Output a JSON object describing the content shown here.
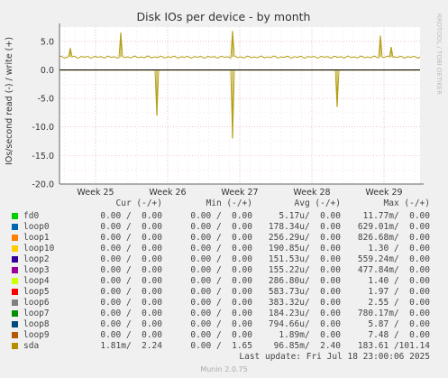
{
  "chart_data": {
    "type": "line",
    "title": "Disk IOs per device - by month",
    "ylabel": "IOs/second read (-) / write (+)",
    "watermark": "RRDTOOL / TOBI OETIKER",
    "ylim": [
      -20,
      7.5
    ],
    "yticks": [
      5.0,
      0.0,
      -5.0,
      -10.0,
      -15.0,
      -20.0
    ],
    "ytick_labels": [
      "5.0",
      "0.0",
      "-5.0",
      "-10.0",
      "-15.0",
      "-20.0"
    ],
    "xlabels": [
      "Week 25",
      "Week 26",
      "Week 27",
      "Week 28",
      "Week 29"
    ],
    "grid": true,
    "series": [
      {
        "name": "sda",
        "color": "#b5a016",
        "write_baseline": 2.24,
        "write_spikes": [
          {
            "x": 0.03,
            "value": 3.8
          },
          {
            "x": 0.17,
            "value": 6.5
          },
          {
            "x": 0.48,
            "value": 6.8
          },
          {
            "x": 0.89,
            "value": 6.0
          },
          {
            "x": 0.92,
            "value": 4.0
          }
        ],
        "read_spikes": [
          {
            "x": 0.27,
            "value": -8.0
          },
          {
            "x": 0.48,
            "value": -12.0
          },
          {
            "x": 0.77,
            "value": -6.5
          }
        ]
      }
    ]
  },
  "legend": {
    "headers": {
      "cur": "Cur (-/+)",
      "min": "Min (-/+)",
      "avg": "Avg (-/+)",
      "max": "Max (-/+)"
    },
    "rows": [
      {
        "name": "fd0",
        "color": "#00cc00",
        "cur": "0.00 /  0.00",
        "min": "0.00 /  0.00",
        "avg": "5.17u/  0.00",
        "max": "11.77m/  0.00"
      },
      {
        "name": "loop0",
        "color": "#0066b3",
        "cur": "0.00 /  0.00",
        "min": "0.00 /  0.00",
        "avg": "178.34u/  0.00",
        "max": "629.01m/  0.00"
      },
      {
        "name": "loop1",
        "color": "#ff8000",
        "cur": "0.00 /  0.00",
        "min": "0.00 /  0.00",
        "avg": "256.29u/  0.00",
        "max": "826.68m/  0.00"
      },
      {
        "name": "loop10",
        "color": "#ffcc00",
        "cur": "0.00 /  0.00",
        "min": "0.00 /  0.00",
        "avg": "190.85u/  0.00",
        "max": "1.30 /  0.00"
      },
      {
        "name": "loop2",
        "color": "#330099",
        "cur": "0.00 /  0.00",
        "min": "0.00 /  0.00",
        "avg": "151.53u/  0.00",
        "max": "559.24m/  0.00"
      },
      {
        "name": "loop3",
        "color": "#990099",
        "cur": "0.00 /  0.00",
        "min": "0.00 /  0.00",
        "avg": "155.22u/  0.00",
        "max": "477.84m/  0.00"
      },
      {
        "name": "loop4",
        "color": "#ccff00",
        "cur": "0.00 /  0.00",
        "min": "0.00 /  0.00",
        "avg": "286.80u/  0.00",
        "max": "1.40 /  0.00"
      },
      {
        "name": "loop5",
        "color": "#ff0000",
        "cur": "0.00 /  0.00",
        "min": "0.00 /  0.00",
        "avg": "583.73u/  0.00",
        "max": "1.97 /  0.00"
      },
      {
        "name": "loop6",
        "color": "#808080",
        "cur": "0.00 /  0.00",
        "min": "0.00 /  0.00",
        "avg": "383.32u/  0.00",
        "max": "2.55 /  0.00"
      },
      {
        "name": "loop7",
        "color": "#008f00",
        "cur": "0.00 /  0.00",
        "min": "0.00 /  0.00",
        "avg": "184.23u/  0.00",
        "max": "780.17m/  0.00"
      },
      {
        "name": "loop8",
        "color": "#00487d",
        "cur": "0.00 /  0.00",
        "min": "0.00 /  0.00",
        "avg": "794.66u/  0.00",
        "max": "5.87 /  0.00"
      },
      {
        "name": "loop9",
        "color": "#b35a00",
        "cur": "0.00 /  0.00",
        "min": "0.00 /  0.00",
        "avg": "1.89m/  0.00",
        "max": "7.48 /  0.00"
      },
      {
        "name": "sda",
        "color": "#b38f00",
        "cur": "1.81m/  2.24",
        "min": "0.00 /  1.65",
        "avg": "96.85m/  2.40",
        "max": "183.61 /101.14"
      }
    ]
  },
  "footer": {
    "last_update": "Last update: Fri Jul 18 23:00:06 2025",
    "munin_version": "Munin 2.0.75"
  }
}
